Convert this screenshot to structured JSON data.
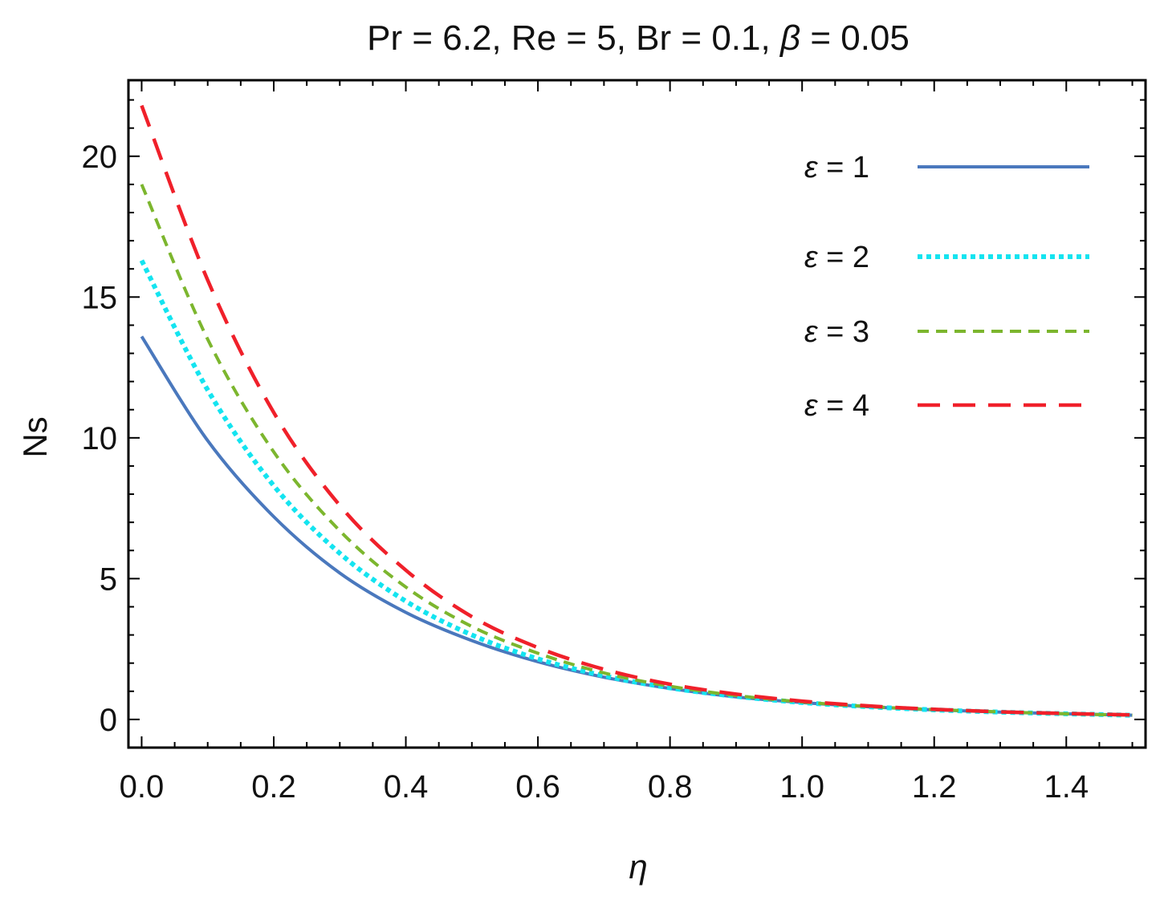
{
  "chart_data": {
    "type": "line",
    "title_parts": {
      "pr": "Pr = 6.2, Re = 5, Br = 0.1, ",
      "beta_symbol": "β",
      "beta_value": " = 0.05"
    },
    "title": "Pr = 6.2, Re = 5, Br = 0.1, β = 0.05",
    "xlabel": "η",
    "ylabel": "Ns",
    "xlim": [
      -0.02,
      1.52
    ],
    "ylim": [
      -1.0,
      22.7
    ],
    "xticks": [
      0.0,
      0.2,
      0.4,
      0.6,
      0.8,
      1.0,
      1.2,
      1.4
    ],
    "xtick_labels": [
      "0.0",
      "0.2",
      "0.4",
      "0.6",
      "0.8",
      "1.0",
      "1.2",
      "1.4"
    ],
    "yticks": [
      0,
      5,
      10,
      15,
      20
    ],
    "ytick_labels": [
      "0",
      "5",
      "10",
      "15",
      "20"
    ],
    "legend_position": "top-right",
    "x": [
      0.0,
      0.1,
      0.2,
      0.3,
      0.4,
      0.5,
      0.6,
      0.7,
      0.8,
      0.9,
      1.0,
      1.1,
      1.2,
      1.3,
      1.4,
      1.5
    ],
    "series": [
      {
        "name": "ε = 1",
        "epsilon_symbol": "ε",
        "epsilon_value": " = 1",
        "color": "#4a78bd",
        "dash": "solid",
        "values": [
          13.6,
          9.9,
          7.2,
          5.2,
          3.8,
          2.8,
          2.05,
          1.5,
          1.1,
          0.8,
          0.6,
          0.45,
          0.34,
          0.26,
          0.2,
          0.15
        ]
      },
      {
        "name": "ε = 2",
        "epsilon_symbol": "ε",
        "epsilon_value": " = 2",
        "color": "#14e4f0",
        "dash": "dotted",
        "values": [
          16.3,
          11.7,
          8.3,
          5.9,
          4.2,
          3.0,
          2.15,
          1.55,
          1.12,
          0.82,
          0.6,
          0.45,
          0.34,
          0.26,
          0.2,
          0.15
        ]
      },
      {
        "name": "ε = 3",
        "epsilon_symbol": "ε",
        "epsilon_value": " = 3",
        "color": "#7cb62e",
        "dash": "short-dash",
        "values": [
          19.0,
          13.5,
          9.5,
          6.7,
          4.7,
          3.3,
          2.35,
          1.65,
          1.18,
          0.85,
          0.62,
          0.46,
          0.35,
          0.27,
          0.2,
          0.15
        ]
      },
      {
        "name": "ε = 4",
        "epsilon_symbol": "ε",
        "epsilon_value": " = 4",
        "color": "#f0202a",
        "dash": "long-dash",
        "values": [
          21.8,
          15.6,
          10.9,
          7.6,
          5.3,
          3.65,
          2.55,
          1.78,
          1.25,
          0.9,
          0.65,
          0.48,
          0.36,
          0.27,
          0.21,
          0.16
        ]
      }
    ]
  }
}
